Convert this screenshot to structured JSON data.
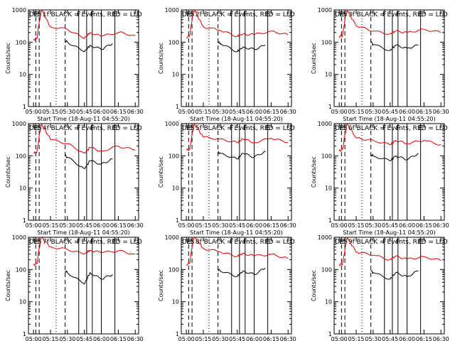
{
  "chart_data": {
    "type": "line",
    "xticks": [
      "05:00",
      "05:15",
      "05:30",
      "05:45",
      "06:00",
      "06:15",
      "06:30"
    ],
    "x_range_hours": [
      4.925,
      6.55
    ],
    "ylim": [
      1,
      1000
    ],
    "yscale": "log",
    "yticks": [
      "1",
      "10",
      "100",
      "1000"
    ],
    "ylabel": "Counts/sec",
    "xlabel": "Start Time (18-Aug-11 04:55:20)",
    "series_colors": {
      "black": "#000000",
      "red": "#e00000"
    },
    "markers": [
      {
        "label": "E",
        "time": "05:02",
        "style": "dashed"
      },
      {
        "label": "S",
        "time": "05:05",
        "style": "dashed"
      },
      {
        "label": "",
        "time": "05:20",
        "style": "dotted"
      },
      {
        "label": "",
        "time": "05:28",
        "style": "dashed"
      },
      {
        "label": "F",
        "time": "05:40",
        "style": "solid"
      },
      {
        "label": "",
        "time": "05:47",
        "style": "solid"
      },
      {
        "label": "F",
        "time": "05:52",
        "style": "solid"
      },
      {
        "label": "",
        "time": "06:00",
        "style": "solid"
      },
      {
        "label": "E",
        "time": "06:12",
        "style": "solid"
      }
    ],
    "panels": [
      {
        "title": "Det 1f BLACK = Events, RED = LLD",
        "red": {
          "x": [
            "05:00",
            "05:03",
            "05:05",
            "05:07",
            "05:15",
            "05:30",
            "05:45",
            "05:50",
            "06:00",
            "06:15",
            "06:30"
          ],
          "y": [
            120,
            130,
            400,
            1000,
            300,
            250,
            130,
            200,
            150,
            200,
            160
          ]
        },
        "black": {
          "x": [
            "05:28",
            "05:30",
            "05:45",
            "05:50",
            "06:00",
            "06:10"
          ],
          "y": [
            110,
            100,
            50,
            80,
            60,
            90
          ]
        }
      },
      {
        "title": "Det 2f BLACK = Events, RED = LLD",
        "red": {
          "x": [
            "05:00",
            "05:03",
            "05:05",
            "05:07",
            "05:15",
            "05:30",
            "05:45",
            "05:50",
            "06:00",
            "06:15",
            "06:30"
          ],
          "y": [
            140,
            160,
            500,
            1000,
            300,
            230,
            150,
            180,
            170,
            220,
            170
          ]
        },
        "black": {
          "x": [
            "05:28",
            "05:30",
            "05:45",
            "05:50",
            "06:00",
            "06:10"
          ],
          "y": [
            100,
            90,
            50,
            70,
            60,
            80
          ]
        }
      },
      {
        "title": "Det 3f BLACK = Events, RED = LLD",
        "red": {
          "x": [
            "05:00",
            "05:03",
            "05:05",
            "05:07",
            "05:15",
            "05:30",
            "05:45",
            "05:50",
            "06:00",
            "06:15",
            "06:30"
          ],
          "y": [
            150,
            160,
            500,
            1000,
            320,
            220,
            180,
            220,
            200,
            250,
            200
          ]
        },
        "black": {
          "x": [
            "05:28",
            "05:30",
            "05:45",
            "05:50",
            "06:00",
            "06:10"
          ],
          "y": [
            100,
            85,
            55,
            80,
            65,
            80
          ]
        }
      },
      {
        "title": "Det 4f BLACK = Events, RED = LLD",
        "red": {
          "x": [
            "05:00",
            "05:03",
            "05:05",
            "05:07",
            "05:15",
            "05:30",
            "05:45",
            "05:50",
            "06:00",
            "06:15",
            "06:30"
          ],
          "y": [
            120,
            130,
            400,
            1000,
            320,
            240,
            120,
            180,
            140,
            200,
            150
          ]
        },
        "black": {
          "x": [
            "05:28",
            "05:30",
            "05:45",
            "05:50",
            "06:00",
            "06:10"
          ],
          "y": [
            100,
            90,
            40,
            70,
            55,
            80
          ]
        }
      },
      {
        "title": "Det 5f BLACK = Events, RED = LLD",
        "red": {
          "x": [
            "05:00",
            "05:03",
            "05:05",
            "05:07",
            "05:15",
            "05:30",
            "05:45",
            "05:50",
            "06:00",
            "06:15",
            "06:30"
          ],
          "y": [
            150,
            160,
            450,
            1000,
            380,
            330,
            260,
            330,
            260,
            350,
            260
          ]
        },
        "black": {
          "x": [
            "05:28",
            "05:30",
            "05:45",
            "05:50",
            "06:00",
            "06:10"
          ],
          "y": [
            130,
            120,
            80,
            120,
            90,
            140
          ]
        }
      },
      {
        "title": "Det 6f BLACK = Events, RED = LLD",
        "red": {
          "x": [
            "05:00",
            "05:03",
            "05:05",
            "05:07",
            "05:15",
            "05:30",
            "05:45",
            "05:50",
            "06:00",
            "06:15",
            "06:30"
          ],
          "y": [
            140,
            160,
            450,
            1000,
            360,
            300,
            220,
            300,
            240,
            300,
            220
          ]
        },
        "black": {
          "x": [
            "05:28",
            "05:30",
            "05:45",
            "05:50",
            "06:00",
            "06:10"
          ],
          "y": [
            110,
            100,
            70,
            100,
            75,
            120
          ]
        }
      },
      {
        "title": "Det 7f BLACK = Events, RED = LLD",
        "red": {
          "x": [
            "05:00",
            "05:03",
            "05:05",
            "05:07",
            "05:15",
            "05:30",
            "05:45",
            "05:50",
            "06:00",
            "06:15",
            "06:30"
          ],
          "y": [
            140,
            150,
            450,
            1000,
            500,
            420,
            300,
            400,
            330,
            380,
            300
          ]
        },
        "black": {
          "x": [
            "05:28",
            "05:30",
            "05:45",
            "05:50",
            "06:00",
            "06:10"
          ],
          "y": [
            90,
            80,
            35,
            80,
            50,
            70
          ]
        }
      },
      {
        "title": "Det 8f BLACK = Events, RED = LLD",
        "red": {
          "x": [
            "05:00",
            "05:03",
            "05:05",
            "05:07",
            "05:15",
            "05:30",
            "05:45",
            "05:50",
            "06:00",
            "06:15",
            "06:30"
          ],
          "y": [
            140,
            160,
            500,
            1000,
            450,
            350,
            250,
            320,
            260,
            300,
            220
          ]
        },
        "black": {
          "x": [
            "05:28",
            "05:30",
            "05:45",
            "05:50",
            "06:00",
            "06:10"
          ],
          "y": [
            100,
            90,
            60,
            90,
            70,
            110
          ]
        }
      },
      {
        "title": "Det 9f BLACK = Events, RED = LLD",
        "red": {
          "x": [
            "05:00",
            "05:03",
            "05:05",
            "05:07",
            "05:15",
            "05:30",
            "05:45",
            "05:50",
            "06:00",
            "06:15",
            "06:30"
          ],
          "y": [
            140,
            150,
            400,
            1000,
            350,
            280,
            200,
            260,
            210,
            250,
            190
          ]
        },
        "black": {
          "x": [
            "05:28",
            "05:30",
            "05:45",
            "05:50",
            "06:00",
            "06:10"
          ],
          "y": [
            90,
            80,
            50,
            80,
            60,
            90
          ]
        }
      }
    ]
  }
}
